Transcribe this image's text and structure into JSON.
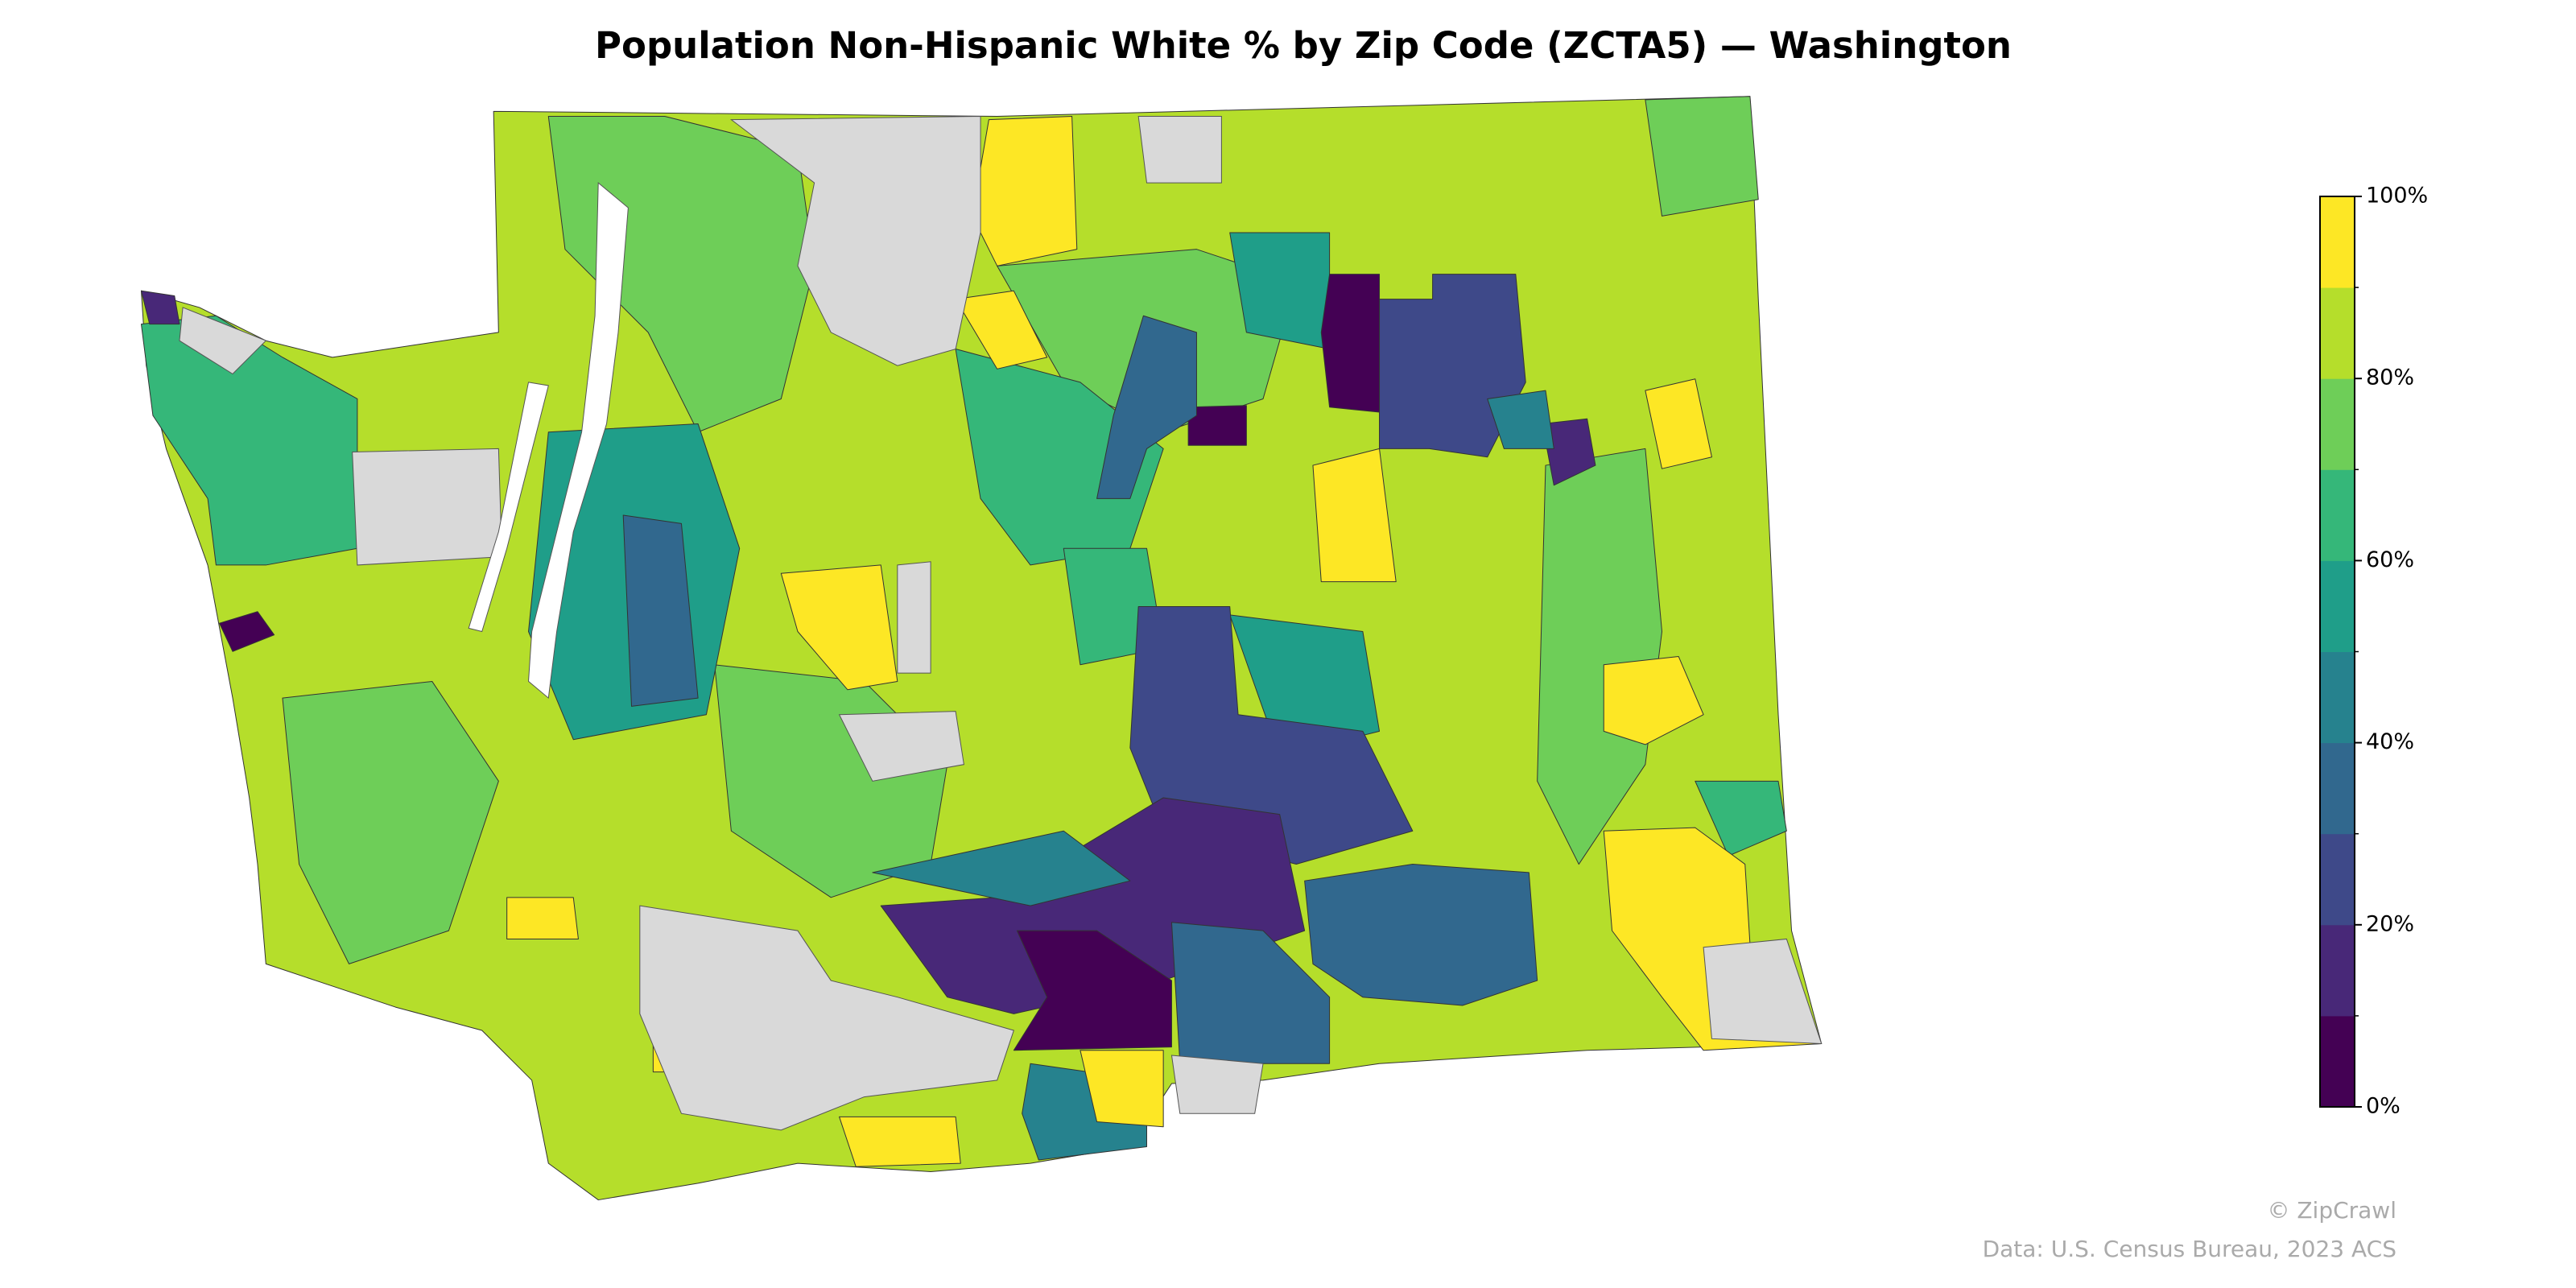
{
  "chart_data": {
    "type": "choropleth",
    "title": "Population Non-Hispanic White % by Zip Code (ZCTA5) — Washington",
    "colorbar": {
      "lim": [
        0,
        100
      ],
      "colors": [
        "#440154",
        "#482878",
        "#3e4989",
        "#31688e",
        "#26828e",
        "#1f9e89",
        "#35b779",
        "#6ece58",
        "#b5de2b",
        "#fde725"
      ],
      "ticks": [
        {
          "value": 0,
          "label": "0%"
        },
        {
          "value": 20,
          "label": "20%"
        },
        {
          "value": 40,
          "label": "40%"
        },
        {
          "value": 60,
          "label": "60%"
        },
        {
          "value": 80,
          "label": "80%"
        },
        {
          "value": 100,
          "label": "100%"
        }
      ],
      "minor_ticks": [
        10,
        30,
        50,
        70,
        90
      ]
    },
    "credit": "© ZipCrawl",
    "source": "Data: U.S. Census Bureau, 2023 ACS"
  }
}
